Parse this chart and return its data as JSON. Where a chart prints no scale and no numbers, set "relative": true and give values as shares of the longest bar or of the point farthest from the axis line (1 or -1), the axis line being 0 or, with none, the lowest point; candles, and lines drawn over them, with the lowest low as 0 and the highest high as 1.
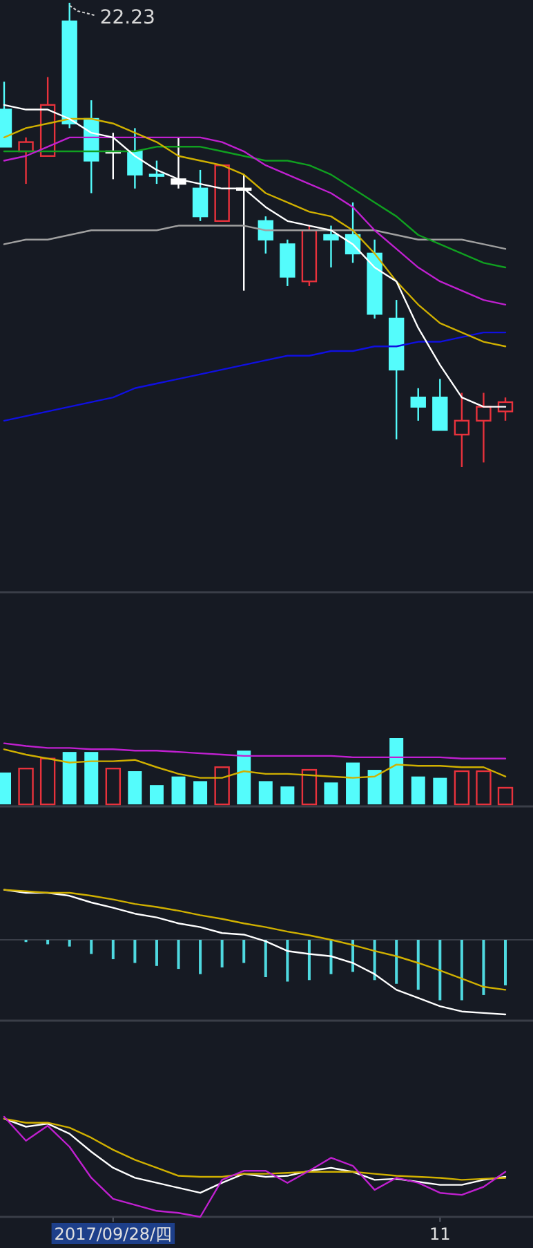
{
  "chart_data": [
    {
      "type": "candlestick",
      "relative": true,
      "tick_labels": false,
      "categories": [
        null,
        null,
        null,
        null,
        null,
        null,
        null,
        null,
        null,
        null,
        null,
        null,
        null,
        null,
        null,
        null,
        null,
        null,
        null,
        null,
        null,
        null,
        null,
        null
      ],
      "ohlc": [
        [
          0.77,
          0.83,
          0.69,
          0.69
        ],
        [
          0.68,
          0.71,
          0.61,
          0.7
        ],
        [
          0.67,
          0.84,
          0.67,
          0.78
        ],
        [
          0.96,
          1.0,
          0.73,
          0.74
        ],
        [
          0.75,
          0.79,
          0.59,
          0.66
        ],
        [
          0.68,
          0.72,
          0.62,
          0.68
        ],
        [
          0.68,
          0.73,
          0.6,
          0.63
        ],
        [
          0.63,
          0.66,
          0.61,
          0.63
        ],
        [
          0.62,
          0.71,
          0.6,
          0.61
        ],
        [
          0.6,
          0.64,
          0.53,
          0.54
        ],
        [
          0.53,
          0.65,
          0.53,
          0.65
        ],
        [
          0.6,
          0.63,
          0.38,
          0.6
        ],
        [
          0.53,
          0.54,
          0.46,
          0.49
        ],
        [
          0.48,
          0.49,
          0.39,
          0.41
        ],
        [
          0.4,
          0.52,
          0.39,
          0.51
        ],
        [
          0.5,
          0.52,
          0.43,
          0.49
        ],
        [
          0.5,
          0.57,
          0.44,
          0.46
        ],
        [
          0.46,
          0.49,
          0.32,
          0.33
        ],
        [
          0.32,
          0.36,
          0.06,
          0.21
        ],
        [
          0.15,
          0.17,
          0.1,
          0.13
        ],
        [
          0.15,
          0.19,
          0.08,
          0.08
        ],
        [
          0.07,
          0.16,
          0.0,
          0.1
        ],
        [
          0.1,
          0.16,
          0.01,
          0.13
        ],
        [
          0.12,
          0.15,
          0.1,
          0.14
        ]
      ],
      "colors": [
        "#54fcfc",
        "#e8323c",
        "#e8323c",
        "#54fcfc",
        "#54fcfc",
        "#ffffff",
        "#54fcfc",
        "#54fcfc",
        "#ffffff",
        "#54fcfc",
        "#e8323c",
        "#ffffff",
        "#54fcfc",
        "#54fcfc",
        "#e8323c",
        "#54fcfc",
        "#54fcfc",
        "#54fcfc",
        "#54fcfc",
        "#54fcfc",
        "#54fcfc",
        "#e8323c",
        "#e8323c",
        "#e8323c"
      ],
      "series": [
        {
          "type": "line",
          "color": "#1010e0",
          "values": [
            0.1,
            0.11,
            0.12,
            0.13,
            0.14,
            0.15,
            0.17,
            0.18,
            0.19,
            0.2,
            0.21,
            0.22,
            0.23,
            0.24,
            0.24,
            0.25,
            0.25,
            0.26,
            0.26,
            0.27,
            0.27,
            0.28,
            0.29,
            0.29
          ]
        },
        {
          "type": "line",
          "color": "#a0a0a0",
          "values": [
            0.48,
            0.49,
            0.49,
            0.5,
            0.51,
            0.51,
            0.51,
            0.51,
            0.52,
            0.52,
            0.52,
            0.52,
            0.51,
            0.51,
            0.51,
            0.51,
            0.51,
            0.51,
            0.5,
            0.49,
            0.49,
            0.49,
            0.48,
            0.47
          ]
        },
        {
          "type": "line",
          "color": "#10a020",
          "values": [
            0.68,
            0.68,
            0.68,
            0.68,
            0.68,
            0.68,
            0.68,
            0.69,
            0.69,
            0.69,
            0.68,
            0.67,
            0.66,
            0.66,
            0.65,
            0.63,
            0.6,
            0.57,
            0.54,
            0.5,
            0.48,
            0.46,
            0.44,
            0.43
          ]
        },
        {
          "type": "line",
          "color": "#c020d0",
          "values": [
            0.66,
            0.67,
            0.69,
            0.71,
            0.71,
            0.71,
            0.71,
            0.71,
            0.71,
            0.71,
            0.7,
            0.68,
            0.65,
            0.63,
            0.61,
            0.59,
            0.56,
            0.51,
            0.47,
            0.43,
            0.4,
            0.38,
            0.36,
            0.35
          ]
        },
        {
          "type": "line",
          "color": "#d0b000",
          "values": [
            0.71,
            0.73,
            0.74,
            0.75,
            0.75,
            0.74,
            0.72,
            0.7,
            0.67,
            0.66,
            0.65,
            0.63,
            0.59,
            0.57,
            0.55,
            0.54,
            0.51,
            0.46,
            0.4,
            0.35,
            0.31,
            0.29,
            0.27,
            0.26
          ]
        },
        {
          "type": "line",
          "color": "#ffffff",
          "values": [
            0.78,
            0.77,
            0.77,
            0.75,
            0.72,
            0.71,
            0.67,
            0.64,
            0.62,
            0.61,
            0.6,
            0.6,
            0.56,
            0.53,
            0.52,
            0.51,
            0.48,
            0.43,
            0.4,
            0.3,
            0.22,
            0.15,
            0.13,
            0.13
          ]
        }
      ],
      "annotations": [
        "22.23"
      ]
    },
    {
      "type": "bar",
      "relative": true,
      "tick_labels": false,
      "categories": [
        null,
        null,
        null,
        null,
        null,
        null,
        null,
        null,
        null,
        null,
        null,
        null,
        null,
        null,
        null,
        null,
        null,
        null,
        null,
        null,
        null,
        null,
        null,
        null
      ],
      "series": [
        {
          "type": "bar",
          "values": [
            0.48,
            0.54,
            0.69,
            0.79,
            0.79,
            0.54,
            0.5,
            0.29,
            0.42,
            0.35,
            0.56,
            0.81,
            0.35,
            0.27,
            0.52,
            0.33,
            0.63,
            0.52,
            1.0,
            0.42,
            0.4,
            0.5,
            0.5,
            0.25
          ],
          "colors": [
            "#54fcfc",
            "#e8323c",
            "#e8323c",
            "#54fcfc",
            "#54fcfc",
            "#e8323c",
            "#54fcfc",
            "#54fcfc",
            "#54fcfc",
            "#54fcfc",
            "#e8323c",
            "#54fcfc",
            "#54fcfc",
            "#54fcfc",
            "#e8323c",
            "#54fcfc",
            "#54fcfc",
            "#54fcfc",
            "#54fcfc",
            "#54fcfc",
            "#54fcfc",
            "#e8323c",
            "#e8323c",
            "#e8323c"
          ]
        },
        {
          "type": "line",
          "color": "#c020d0",
          "values": [
            0.92,
            0.88,
            0.85,
            0.85,
            0.83,
            0.83,
            0.81,
            0.81,
            0.79,
            0.77,
            0.75,
            0.73,
            0.73,
            0.73,
            0.73,
            0.73,
            0.71,
            0.71,
            0.71,
            0.71,
            0.71,
            0.69,
            0.69,
            0.69
          ]
        },
        {
          "type": "line",
          "color": "#d0b000",
          "values": [
            0.83,
            0.75,
            0.69,
            0.63,
            0.65,
            0.65,
            0.67,
            0.56,
            0.46,
            0.4,
            0.4,
            0.5,
            0.46,
            0.46,
            0.44,
            0.42,
            0.4,
            0.42,
            0.6,
            0.58,
            0.58,
            0.56,
            0.56,
            0.42
          ]
        }
      ]
    },
    {
      "type": "bar",
      "relative": true,
      "tick_labels": false,
      "categories": [
        null,
        null,
        null,
        null,
        null,
        null,
        null,
        null,
        null,
        null,
        null,
        null,
        null,
        null,
        null,
        null,
        null,
        null,
        null,
        null,
        null,
        null,
        null,
        null
      ],
      "series": [
        {
          "type": "bar",
          "color": "#4fd9e0",
          "values": [
            null,
            -0.03,
            -0.06,
            -0.09,
            -0.19,
            -0.26,
            -0.31,
            -0.35,
            -0.39,
            -0.46,
            -0.37,
            -0.31,
            -0.5,
            -0.56,
            -0.54,
            -0.46,
            -0.43,
            -0.54,
            -0.59,
            -0.67,
            -0.81,
            -0.81,
            -0.74,
            -0.61
          ]
        },
        {
          "type": "line",
          "color": "#ffffff",
          "values": [
            0.67,
            0.63,
            0.63,
            0.59,
            0.5,
            0.43,
            0.35,
            0.3,
            0.22,
            0.17,
            0.09,
            0.07,
            -0.02,
            -0.15,
            -0.19,
            -0.22,
            -0.31,
            -0.46,
            -0.67,
            -0.78,
            -0.89,
            -0.96,
            -0.98,
            -1.0
          ]
        },
        {
          "type": "line",
          "color": "#d0b000",
          "values": [
            0.67,
            0.65,
            0.63,
            0.63,
            0.59,
            0.54,
            0.48,
            0.44,
            0.39,
            0.33,
            0.28,
            0.22,
            0.17,
            0.11,
            0.06,
            0.0,
            -0.07,
            -0.15,
            -0.22,
            -0.31,
            -0.41,
            -0.52,
            -0.63,
            -0.67
          ]
        }
      ]
    },
    {
      "type": "line",
      "relative": true,
      "tick_labels": "x",
      "categories": [
        null,
        null,
        null,
        null,
        null,
        "2017/09/28/四",
        null,
        null,
        null,
        null,
        null,
        null,
        null,
        null,
        null,
        null,
        null,
        null,
        null,
        null,
        "11",
        null,
        null,
        null
      ],
      "series": [
        {
          "type": "line",
          "color": "#ffffff",
          "values": [
            0.98,
            0.9,
            0.93,
            0.83,
            0.65,
            0.49,
            0.39,
            0.34,
            0.29,
            0.24,
            0.34,
            0.43,
            0.4,
            0.41,
            0.46,
            0.49,
            0.45,
            0.37,
            0.38,
            0.35,
            0.32,
            0.32,
            0.37,
            0.4
          ]
        },
        {
          "type": "line",
          "color": "#d0b000",
          "values": [
            0.98,
            0.94,
            0.94,
            0.89,
            0.79,
            0.67,
            0.57,
            0.49,
            0.41,
            0.4,
            0.4,
            0.43,
            0.43,
            0.44,
            0.45,
            0.45,
            0.45,
            0.43,
            0.41,
            0.4,
            0.39,
            0.37,
            0.38,
            0.39
          ]
        },
        {
          "type": "line",
          "color": "#c020d0",
          "values": [
            1.0,
            0.76,
            0.91,
            0.7,
            0.39,
            0.18,
            0.12,
            0.06,
            0.04,
            0.0,
            0.37,
            0.46,
            0.46,
            0.34,
            0.46,
            0.59,
            0.51,
            0.27,
            0.39,
            0.34,
            0.24,
            0.22,
            0.3,
            0.45
          ]
        }
      ]
    }
  ]
}
